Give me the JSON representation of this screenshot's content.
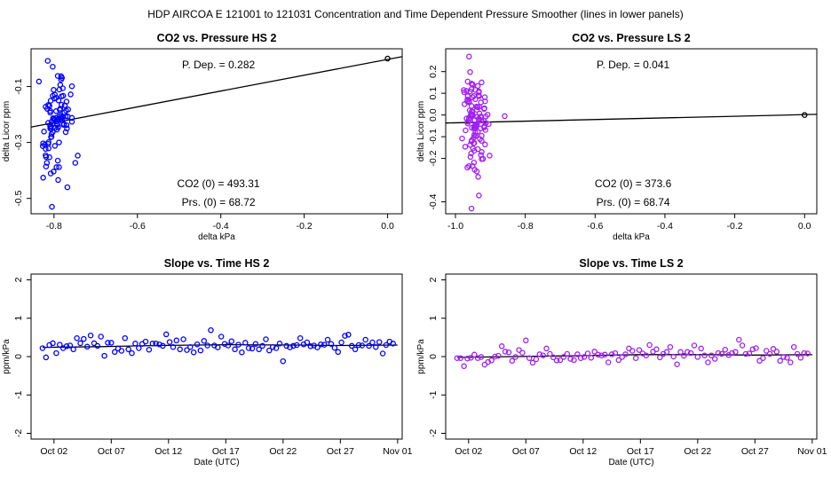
{
  "main_title": "HDP   AIRCOA E   121001 to 121031   Concentration and Time Dependent Pressure Smoother (lines in lower panels)",
  "chart_data": [
    {
      "id": "hs_pressure",
      "type": "scatter",
      "title": "CO2 vs. Pressure HS 2",
      "xlabel": "delta kPa",
      "ylabel": "delta Licor ppm",
      "xlim": [
        -0.855,
        0.035
      ],
      "ylim": [
        -0.555,
        0.035
      ],
      "xticks": [
        -0.8,
        -0.6,
        -0.4,
        -0.2,
        0.0
      ],
      "xtick_labels": [
        "-0.8",
        "-0.6",
        "-0.4",
        "-0.2",
        "0.0"
      ],
      "yticks": [
        -0.1,
        -0.3,
        -0.5
      ],
      "ytick_labels": [
        "-0.1",
        "-0.3",
        "-0.5"
      ],
      "point_color": "#0000ff",
      "fit_line": {
        "x": [
          -0.855,
          0.035
        ],
        "y": [
          -0.245,
          0.007
        ]
      },
      "origin_point": {
        "x": 0.0,
        "y": 0.0
      },
      "annotations": {
        "p_dep": "P. Dep. =  0.282",
        "co2_0": "CO2 (0) =  493.31",
        "prs_0": "Prs. (0) =  68.72"
      },
      "points": {
        "x": [
          -0.772,
          -0.776,
          -0.783,
          -0.771,
          -0.792,
          -0.766,
          -0.79,
          -0.787,
          -0.795,
          -0.793,
          -0.775,
          -0.809,
          -0.8,
          -0.82,
          -0.806,
          -0.803,
          -0.76,
          -0.806,
          -0.789,
          -0.836,
          -0.791,
          -0.779,
          -0.807,
          -0.808,
          -0.824,
          -0.782,
          -0.783,
          -0.809,
          -0.783,
          -0.814,
          -0.795,
          -0.802,
          -0.795,
          -0.757,
          -0.785,
          -0.778,
          -0.785,
          -0.787,
          -0.772,
          -0.802,
          -0.797,
          -0.793,
          -0.813,
          -0.799,
          -0.767,
          -0.808,
          -0.826,
          -0.781,
          -0.814,
          -0.77,
          -0.806,
          -0.781,
          -0.77,
          -0.803,
          -0.782,
          -0.801,
          -0.798,
          -0.827,
          -0.816,
          -0.757,
          -0.777,
          -0.786,
          -0.811,
          -0.809,
          -0.809,
          -0.779,
          -0.807,
          -0.757,
          -0.82,
          -0.804,
          -0.793,
          -0.794,
          -0.774,
          -0.769,
          -0.814,
          -0.813,
          -0.782,
          -0.798,
          -0.811,
          -0.801,
          -0.826,
          -0.798,
          -0.788,
          -0.749,
          -0.82,
          -0.819,
          -0.743,
          -0.794,
          -0.819,
          -0.79,
          -0.768,
          -0.808,
          -0.791,
          -0.788,
          -0.817,
          -0.805,
          -0.815,
          -0.803,
          -0.783,
          -0.822
        ],
        "y": [
          -0.207,
          -0.234,
          -0.075,
          -0.186,
          -0.236,
          -0.182,
          -0.246,
          -0.111,
          -0.212,
          -0.254,
          -0.192,
          -0.193,
          -0.215,
          -0.172,
          -0.226,
          -0.133,
          -0.128,
          -0.27,
          -0.15,
          -0.082,
          -0.062,
          -0.106,
          -0.251,
          -0.242,
          -0.261,
          -0.165,
          -0.215,
          -0.244,
          -0.205,
          -0.23,
          -0.14,
          -0.213,
          -0.188,
          -0.099,
          -0.094,
          -0.133,
          -0.179,
          -0.205,
          -0.263,
          -0.215,
          -0.249,
          -0.219,
          -0.299,
          -0.143,
          -0.207,
          -0.151,
          -0.303,
          -0.069,
          -0.166,
          -0.154,
          -0.28,
          -0.222,
          -0.238,
          -0.263,
          -0.135,
          -0.112,
          -0.129,
          -0.313,
          -0.18,
          -0.212,
          -0.237,
          -0.184,
          -0.169,
          -0.187,
          -0.25,
          -0.209,
          -0.281,
          -0.226,
          -0.346,
          -0.233,
          -0.232,
          -0.225,
          -0.167,
          -0.25,
          -0.305,
          -0.321,
          -0.211,
          -0.218,
          -0.353,
          -0.404,
          -0.426,
          -0.312,
          -0.3,
          -0.373,
          -0.323,
          -0.386,
          -0.347,
          -0.388,
          -0.352,
          -0.434,
          -0.46,
          -0.411,
          -0.365,
          -0.388,
          -0.373,
          -0.53,
          -0.008,
          -0.029,
          -0.063,
          -0.308
        ]
      }
    },
    {
      "id": "ls_pressure",
      "type": "scatter",
      "title": "CO2 vs. Pressure LS 2",
      "xlabel": "delta kPa",
      "ylabel": "delta Licor ppm",
      "xlim": [
        -1.028,
        0.035
      ],
      "ylim": [
        -0.455,
        0.305
      ],
      "xticks": [
        -1.0,
        -0.8,
        -0.6,
        -0.4,
        -0.2,
        0.0
      ],
      "xtick_labels": [
        "-1.0",
        "-0.8",
        "-0.6",
        "-0.4",
        "-0.2",
        "0.0"
      ],
      "yticks": [
        0.2,
        0.1,
        0.0,
        -0.1,
        -0.2,
        -0.4
      ],
      "ytick_labels": [
        "0.2",
        "0.1",
        "0.0",
        "-0.1",
        "-0.2",
        "-0.4"
      ],
      "point_color": "#a020f0",
      "fit_line": {
        "x": [
          -1.028,
          0.035
        ],
        "y": [
          -0.037,
          0.003
        ]
      },
      "origin_point": {
        "x": 0.0,
        "y": 0.0
      },
      "annotations": {
        "p_dep": "P. Dep. =  0.041",
        "co2_0": "CO2 (0) =  373.6",
        "prs_0": "Prs. (0) =  68.74"
      },
      "points": {
        "x": [
          -0.934,
          -0.965,
          -0.908,
          -0.925,
          -0.974,
          -0.917,
          -0.951,
          -0.957,
          -0.943,
          -0.942,
          -0.918,
          -0.965,
          -0.927,
          -0.933,
          -0.945,
          -0.954,
          -0.938,
          -0.952,
          -0.953,
          -0.914,
          -0.959,
          -0.918,
          -0.968,
          -0.976,
          -0.968,
          -0.905,
          -0.943,
          -0.95,
          -0.955,
          -0.931,
          -0.934,
          -0.943,
          -0.941,
          -0.953,
          -0.954,
          -0.913,
          -0.965,
          -0.938,
          -0.928,
          -0.933,
          -0.975,
          -0.918,
          -0.966,
          -0.939,
          -0.953,
          -0.937,
          -0.947,
          -0.94,
          -0.958,
          -0.962,
          -0.944,
          -0.965,
          -0.954,
          -0.953,
          -0.927,
          -0.931,
          -0.943,
          -0.913,
          -0.932,
          -0.943,
          -0.926,
          -0.925,
          -0.943,
          -0.936,
          -0.948,
          -0.915,
          -0.946,
          -0.946,
          -0.945,
          -0.925,
          -0.93,
          -0.971,
          -0.958,
          -0.954,
          -0.953,
          -0.946,
          -0.955,
          -0.946,
          -0.936,
          -0.957,
          -0.951,
          -0.981,
          -0.925,
          -0.921,
          -0.902,
          -0.947,
          -0.961,
          -0.945,
          -0.972,
          -0.948,
          -0.95,
          -0.927,
          -0.925,
          -0.859,
          -0.939,
          -0.958,
          -0.936,
          -0.916,
          -0.932,
          -0.915,
          -0.954,
          -0.917,
          -0.958,
          -0.951,
          -0.961,
          -0.961,
          -0.961,
          -0.947,
          -0.933,
          -0.966,
          -0.954,
          -0.951,
          -0.961,
          -0.966,
          -0.935,
          -0.933,
          -0.928,
          -0.965,
          -0.942,
          -0.954,
          -0.942
        ],
        "y": [
          0.091,
          0.154,
          0.002,
          0.15,
          0.05,
          -0.052,
          0.082,
          -0.003,
          -0.08,
          -0.044,
          -0.028,
          0.087,
          0.058,
          0.104,
          -0.024,
          0.042,
          -0.041,
          0.014,
          0.016,
          -0.069,
          0.021,
          -0.058,
          0.111,
          0.115,
          -0.016,
          -0.042,
          0.116,
          -0.002,
          0.005,
          0.007,
          -0.018,
          -0.047,
          -0.043,
          -0.001,
          -0.004,
          -0.037,
          -0.031,
          -0.009,
          -0.062,
          -0.019,
          0.105,
          0.028,
          0.063,
          0.024,
          0.017,
          0.036,
          -0.061,
          0.038,
          -0.024,
          -0.022,
          -0.063,
          0.089,
          -0.005,
          -0.059,
          -0.007,
          -0.02,
          0.073,
          -0.007,
          0.038,
          -0.048,
          -0.025,
          -0.096,
          -0.049,
          -0.077,
          -0.105,
          -0.136,
          -0.057,
          -0.092,
          -0.051,
          -0.119,
          -0.111,
          -0.071,
          -0.138,
          -0.122,
          -0.116,
          -0.129,
          -0.177,
          -0.165,
          -0.157,
          -0.193,
          -0.235,
          -0.108,
          -0.17,
          -0.202,
          -0.187,
          -0.219,
          -0.235,
          -0.252,
          -0.146,
          -0.13,
          -0.154,
          -0.184,
          -0.203,
          -0.005,
          -0.26,
          0.109,
          0.134,
          0.082,
          0.087,
          0.063,
          0.145,
          0.031,
          0.198,
          0.141,
          0.269,
          0.063,
          -0.013,
          0.088,
          0.109,
          0.071,
          0.119,
          0.139,
          0.058,
          -0.242,
          -0.285,
          -0.371,
          -0.008,
          -0.039,
          -0.058,
          -0.431,
          -0.096
        ]
      }
    },
    {
      "id": "hs_time",
      "type": "scatter",
      "title": "Slope vs. Time HS 2",
      "xlabel": "Date (UTC)",
      "ylabel": "ppm/kPa",
      "xlim": [
        -1.0,
        31.4
      ],
      "ylim": [
        -2.15,
        2.15
      ],
      "xticks": [
        1,
        6,
        11,
        16,
        21,
        26,
        31
      ],
      "xtick_labels": [
        "Oct 02",
        "Oct 07",
        "Oct 12",
        "Oct 17",
        "Oct 22",
        "Oct 27",
        "Nov 01"
      ],
      "yticks": [
        -2,
        -1,
        0,
        1,
        2
      ],
      "ytick_labels": [
        "-2",
        "-1",
        "0",
        "1",
        "2"
      ],
      "point_color": "#0000ff",
      "smoother": {
        "x": [
          0.0,
          5.0,
          10.0,
          16.0,
          22.0,
          26.0,
          31.0
        ],
        "y": [
          0.24,
          0.26,
          0.29,
          0.31,
          0.3,
          0.29,
          0.3
        ]
      },
      "points": {
        "x": [
          0.0,
          0.3,
          0.6,
          0.9,
          1.2,
          1.5,
          1.8,
          2.1,
          2.4,
          2.7,
          3.0,
          3.3,
          3.6,
          3.9,
          4.2,
          4.5,
          4.8,
          5.1,
          5.4,
          5.7,
          6.0,
          6.3,
          6.6,
          6.9,
          7.2,
          7.5,
          7.8,
          8.1,
          8.4,
          8.7,
          9.0,
          9.3,
          9.6,
          9.9,
          10.2,
          10.5,
          10.8,
          11.1,
          11.4,
          11.7,
          12.0,
          12.3,
          12.6,
          12.9,
          13.2,
          13.5,
          13.8,
          14.1,
          14.4,
          14.7,
          15.0,
          15.3,
          15.6,
          15.9,
          16.2,
          16.5,
          16.8,
          17.1,
          17.4,
          17.7,
          18.0,
          18.3,
          18.6,
          18.9,
          19.2,
          19.5,
          19.8,
          20.1,
          20.4,
          20.7,
          21.0,
          21.3,
          21.6,
          21.9,
          22.2,
          22.5,
          22.8,
          23.1,
          23.4,
          23.7,
          24.0,
          24.3,
          24.6,
          24.9,
          25.2,
          25.5,
          25.8,
          26.1,
          26.4,
          26.7,
          27.0,
          27.3,
          27.6,
          27.9,
          28.2,
          28.5,
          28.8,
          29.1,
          29.4,
          29.7,
          30.0,
          30.3,
          30.6
        ],
        "y": [
          0.22,
          -0.02,
          0.3,
          0.35,
          0.09,
          0.31,
          0.22,
          0.27,
          0.29,
          0.19,
          0.48,
          0.35,
          0.46,
          0.26,
          0.55,
          0.35,
          0.28,
          0.52,
          0.02,
          0.36,
          0.36,
          0.12,
          0.21,
          0.15,
          0.48,
          0.19,
          0.09,
          0.34,
          0.22,
          0.33,
          0.39,
          0.18,
          0.34,
          0.34,
          0.32,
          0.28,
          0.58,
          0.38,
          0.25,
          0.42,
          0.19,
          0.45,
          0.17,
          0.25,
          0.11,
          0.32,
          0.16,
          0.41,
          0.29,
          0.69,
          0.29,
          0.24,
          0.52,
          0.33,
          0.29,
          0.4,
          0.19,
          0.31,
          0.11,
          0.36,
          0.22,
          0.21,
          0.33,
          0.19,
          0.28,
          0.45,
          0.16,
          0.25,
          0.22,
          0.34,
          -0.12,
          0.28,
          0.24,
          0.28,
          0.3,
          0.48,
          0.32,
          0.37,
          0.27,
          0.29,
          0.24,
          0.32,
          0.31,
          0.44,
          0.33,
          0.23,
          0.12,
          0.37,
          0.54,
          0.57,
          0.28,
          0.19,
          0.3,
          0.29,
          0.44,
          0.28,
          0.37,
          0.25,
          0.38,
          0.08,
          0.3,
          0.39,
          0.34
        ]
      }
    },
    {
      "id": "ls_time",
      "type": "scatter",
      "title": "Slope vs. Time LS 2",
      "xlabel": "Date (UTC)",
      "ylabel": "ppm/kPa",
      "xlim": [
        -1.0,
        31.4
      ],
      "ylim": [
        -2.15,
        2.15
      ],
      "xticks": [
        1,
        6,
        11,
        16,
        21,
        26,
        31
      ],
      "xtick_labels": [
        "Oct 02",
        "Oct 07",
        "Oct 12",
        "Oct 17",
        "Oct 22",
        "Oct 27",
        "Nov 01"
      ],
      "yticks": [
        -2,
        -1,
        0,
        1,
        2
      ],
      "ytick_labels": [
        "-2",
        "-1",
        "0",
        "1",
        "2"
      ],
      "point_color": "#a020f0",
      "smoother": {
        "x": [
          0.0,
          5.0,
          10.0,
          16.0,
          22.0,
          26.0,
          31.0
        ],
        "y": [
          -0.02,
          0.0,
          0.02,
          0.05,
          0.05,
          0.04,
          0.05
        ]
      },
      "points": {
        "x": [
          0.0,
          0.3,
          0.6,
          0.9,
          1.2,
          1.5,
          1.8,
          2.1,
          2.4,
          2.7,
          3.0,
          3.3,
          3.6,
          3.9,
          4.2,
          4.5,
          4.8,
          5.1,
          5.4,
          5.7,
          6.0,
          6.3,
          6.6,
          6.9,
          7.2,
          7.5,
          7.8,
          8.1,
          8.4,
          8.7,
          9.0,
          9.3,
          9.6,
          9.9,
          10.2,
          10.5,
          10.8,
          11.1,
          11.4,
          11.7,
          12.0,
          12.3,
          12.6,
          12.9,
          13.2,
          13.5,
          13.8,
          14.1,
          14.4,
          14.7,
          15.0,
          15.3,
          15.6,
          15.9,
          16.2,
          16.5,
          16.8,
          17.1,
          17.4,
          17.7,
          18.0,
          18.3,
          18.6,
          18.9,
          19.2,
          19.5,
          19.8,
          20.1,
          20.4,
          20.7,
          21.0,
          21.3,
          21.6,
          21.9,
          22.2,
          22.5,
          22.8,
          23.1,
          23.4,
          23.7,
          24.0,
          24.3,
          24.6,
          24.9,
          25.2,
          25.5,
          25.8,
          26.1,
          26.4,
          26.7,
          27.0,
          27.3,
          27.6,
          27.9,
          28.2,
          28.5,
          28.8,
          29.1,
          29.4,
          29.7,
          30.0,
          30.3,
          30.6
        ],
        "y": [
          -0.04,
          -0.04,
          -0.25,
          -0.05,
          -0.03,
          0.05,
          -0.04,
          -0.01,
          -0.21,
          -0.14,
          -0.1,
          0.0,
          0.02,
          0.27,
          0.13,
          0.11,
          -0.11,
          -0.01,
          0.17,
          0.1,
          0.42,
          -0.04,
          -0.16,
          -0.07,
          0.06,
          0.03,
          0.21,
          0.07,
          -0.02,
          -0.1,
          -0.09,
          -0.01,
          0.07,
          -0.06,
          -0.09,
          0.06,
          -0.04,
          -0.01,
          0.08,
          -0.03,
          0.13,
          0.05,
          0.03,
          0.05,
          -0.15,
          0.06,
          0.09,
          -0.09,
          -0.01,
          0.06,
          0.21,
          0.15,
          -0.04,
          0.17,
          0.08,
          0.03,
          0.3,
          0.13,
          0.19,
          -0.02,
          0.07,
          0.12,
          0.25,
          0.0,
          -0.2,
          0.12,
          0.02,
          0.12,
          0.09,
          0.29,
          -0.01,
          0.21,
          0.03,
          -0.15,
          0.03,
          -0.06,
          0.09,
          0.07,
          0.18,
          0.04,
          0.09,
          0.12,
          0.44,
          0.29,
          0.07,
          0.08,
          0.19,
          0.22,
          -0.11,
          -0.04,
          0.15,
          0.07,
          0.2,
          0.13,
          -0.11,
          -0.01,
          -0.03,
          -0.15,
          0.25,
          0.07,
          -0.03,
          0.09,
          0.08
        ]
      }
    }
  ]
}
